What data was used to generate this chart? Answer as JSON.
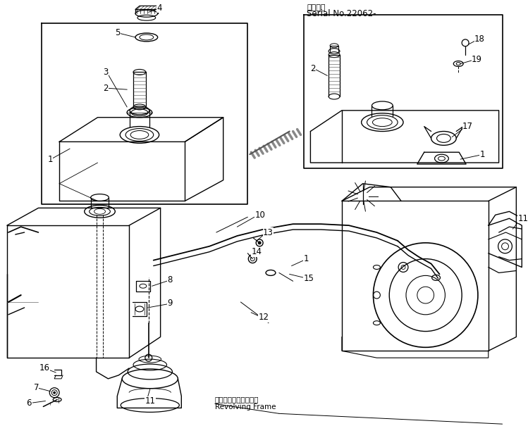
{
  "background_color": "#ffffff",
  "line_color": "#000000",
  "title_line1": "適用号機",
  "title_line2": "Serial No.22062-",
  "revolving_frame_jp": "レボルビングフレーム",
  "revolving_frame_en": "Revolving Frame",
  "lw": 0.9,
  "label_fs": 8.5
}
